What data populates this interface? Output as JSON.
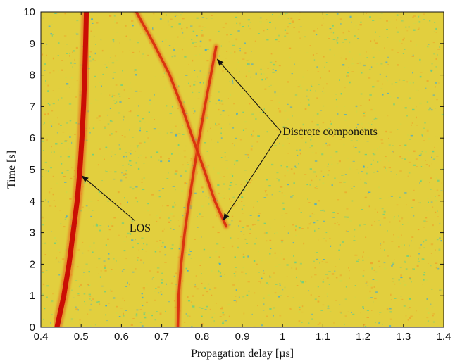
{
  "chart_data": {
    "type": "heatmap",
    "title": "",
    "xlabel": "Propagation delay [µs]",
    "ylabel": "Time [s]",
    "xlim": [
      0.4,
      1.4
    ],
    "ylim": [
      0,
      10
    ],
    "xticks": [
      "0.4",
      "0.5",
      "0.6",
      "0.7",
      "0.8",
      "0.9",
      "1",
      "1.1",
      "1.2",
      "1.3",
      "1.4"
    ],
    "yticks": [
      "0",
      "1",
      "2",
      "3",
      "4",
      "5",
      "6",
      "7",
      "8",
      "9",
      "10"
    ],
    "grid": false,
    "colormap": "jet",
    "background_color": "#e2cf3e",
    "paths": [
      {
        "label": "LOS",
        "strength": "strong",
        "points": [
          [
            0.44,
            0
          ],
          [
            0.457,
            1
          ],
          [
            0.47,
            2
          ],
          [
            0.48,
            3
          ],
          [
            0.49,
            4
          ],
          [
            0.497,
            5
          ],
          [
            0.502,
            6
          ],
          [
            0.506,
            7
          ],
          [
            0.509,
            8
          ],
          [
            0.511,
            9
          ],
          [
            0.513,
            10
          ]
        ]
      },
      {
        "label": "",
        "strength": "medium",
        "points": [
          [
            0.74,
            0
          ],
          [
            0.742,
            1
          ],
          [
            0.748,
            2
          ],
          [
            0.757,
            3
          ],
          [
            0.768,
            4
          ],
          [
            0.78,
            5
          ],
          [
            0.793,
            6
          ],
          [
            0.807,
            7
          ],
          [
            0.822,
            8
          ],
          [
            0.835,
            8.9
          ]
        ]
      },
      {
        "label": "",
        "strength": "medium",
        "points": [
          [
            0.637,
            10
          ],
          [
            0.68,
            9
          ],
          [
            0.72,
            8
          ],
          [
            0.75,
            7
          ],
          [
            0.777,
            6
          ],
          [
            0.805,
            5
          ],
          [
            0.832,
            4
          ],
          [
            0.86,
            3.2
          ]
        ]
      }
    ],
    "annotations": [
      {
        "text": "Discrete components",
        "text_xy": [
          1.0,
          6.2
        ],
        "arrows_to": [
          [
            0.838,
            8.5
          ],
          [
            0.853,
            3.4
          ]
        ]
      },
      {
        "text": "LOS",
        "text_xy": [
          0.62,
          3.15
        ],
        "arrows_to": [
          [
            0.502,
            4.8
          ]
        ]
      }
    ],
    "colors": {
      "strong": "#c80000",
      "medium": "#d82a0c",
      "speckle_green": "#5fcf88",
      "speckle_blue": "#3aa8d8",
      "speckle_orange": "#eea028"
    }
  }
}
